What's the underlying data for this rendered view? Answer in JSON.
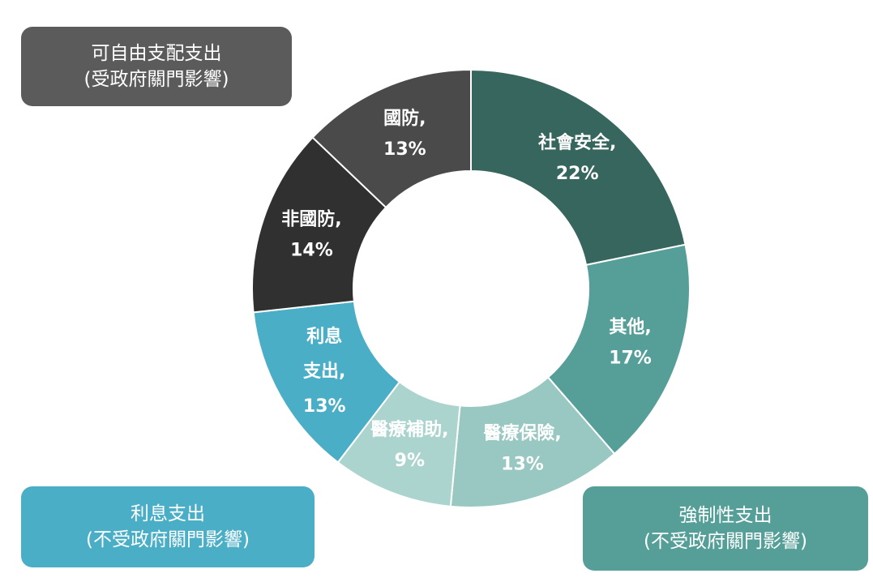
{
  "categories": {
    "discretionary": {
      "line1": "可自由支配支出",
      "line2": "(受政府關門影響)"
    },
    "interest": {
      "line1": "利息支出",
      "line2": "(不受政府關門影響)"
    },
    "mandatory": {
      "line1": "強制性支出",
      "line2": "(不受政府關門影響)"
    }
  },
  "chart_data": {
    "type": "pie",
    "style": "donut",
    "slices": [
      {
        "label": "社會安全,",
        "value": 22,
        "value_label": "22%",
        "color": "#37665f",
        "group": "mandatory"
      },
      {
        "label": "其他,",
        "value": 17,
        "value_label": "17%",
        "color": "#559f98",
        "group": "mandatory"
      },
      {
        "label": "醫療保險,",
        "value": 13,
        "value_label": "13%",
        "color": "#98c8c1",
        "group": "mandatory"
      },
      {
        "label": "醫療補助,",
        "value": 9,
        "value_label": "9%",
        "color": "#acd4cf",
        "group": "mandatory"
      },
      {
        "label": "利息",
        "label2": "支出,",
        "value": 13,
        "value_label": "13%",
        "color": "#4aaec6",
        "group": "interest"
      },
      {
        "label": "非國防,",
        "value": 14,
        "value_label": "14%",
        "color": "#303030",
        "group": "discretionary"
      },
      {
        "label": "國防,",
        "value": 13,
        "value_label": "13%",
        "color": "#4a4a4a",
        "group": "discretionary"
      }
    ]
  }
}
